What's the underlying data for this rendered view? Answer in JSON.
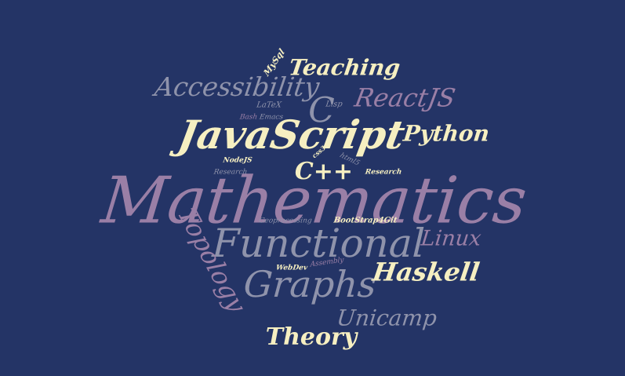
{
  "background_color": "#243466",
  "palette": {
    "cream": "#f6efc1",
    "mauve": "#9a7fa6",
    "slate": "#8f93ab"
  },
  "words": [
    {
      "name": "word-mathematics",
      "text": "Mathematics",
      "color": "#9a7fa6",
      "weight": 100
    },
    {
      "name": "word-javascript",
      "text": "JavaScript",
      "color": "#f6efc1",
      "weight": 70
    },
    {
      "name": "word-functional",
      "text": "Functional",
      "color": "#8f93ab",
      "weight": 68
    },
    {
      "name": "word-graphs",
      "text": "Graphs",
      "color": "#8f93ab",
      "weight": 62
    },
    {
      "name": "word-accessibility",
      "text": "Accessibility",
      "color": "#8f93ab",
      "weight": 44
    },
    {
      "name": "word-reactjs",
      "text": "ReactJS",
      "color": "#9a7fa6",
      "weight": 40
    },
    {
      "name": "word-c",
      "text": "C",
      "color": "#8f93ab",
      "weight": 46
    },
    {
      "name": "word-teaching",
      "text": "Teaching",
      "color": "#f6efc1",
      "weight": 38
    },
    {
      "name": "word-python",
      "text": "Python",
      "color": "#f6efc1",
      "weight": 38
    },
    {
      "name": "word-cpp",
      "text": "C++",
      "color": "#f6efc1",
      "weight": 38
    },
    {
      "name": "word-linux",
      "text": "Linux",
      "color": "#9a7fa6",
      "weight": 34
    },
    {
      "name": "word-haskell",
      "text": "Haskell",
      "color": "#f6efc1",
      "weight": 40
    },
    {
      "name": "word-topology",
      "text": "Topology",
      "color": "#9a7fa6",
      "weight": 40
    },
    {
      "name": "word-unicamp",
      "text": "Unicamp",
      "color": "#8f93ab",
      "weight": 38
    },
    {
      "name": "word-theory",
      "text": "Theory",
      "color": "#f6efc1",
      "weight": 40
    },
    {
      "name": "word-mysql",
      "text": "MySql",
      "color": "#f6efc1",
      "weight": 10
    },
    {
      "name": "word-latex",
      "text": "LaTeX",
      "color": "#8f93ab",
      "weight": 10
    },
    {
      "name": "word-lisp",
      "text": "Lisp",
      "color": "#8f93ab",
      "weight": 10
    },
    {
      "name": "word-bash",
      "text": "Bash",
      "color": "#9a7fa6",
      "weight": 9
    },
    {
      "name": "word-emacs",
      "text": "Emacs",
      "color": "#8f93ab",
      "weight": 9
    },
    {
      "name": "word-css3",
      "text": "css3",
      "color": "#f6efc1",
      "weight": 8
    },
    {
      "name": "word-html5",
      "text": "html5",
      "color": "#8f93ab",
      "weight": 9
    },
    {
      "name": "word-nodejs",
      "text": "NodeJS",
      "color": "#f6efc1",
      "weight": 9
    },
    {
      "name": "word-research-left",
      "text": "Research",
      "color": "#8f93ab",
      "weight": 9
    },
    {
      "name": "word-research-right",
      "text": "Research",
      "color": "#f6efc1",
      "weight": 9
    },
    {
      "name": "word-geoprocessing",
      "text": "Geoprocessing",
      "color": "#8f93ab",
      "weight": 9
    },
    {
      "name": "word-bootstrap4git",
      "text": "BootStrap4Git",
      "color": "#f6efc1",
      "weight": 10
    },
    {
      "name": "word-assembly",
      "text": "Assembly",
      "color": "#9a7fa6",
      "weight": 9
    },
    {
      "name": "word-webdev",
      "text": "WebDev",
      "color": "#f6efc1",
      "weight": 9
    }
  ]
}
